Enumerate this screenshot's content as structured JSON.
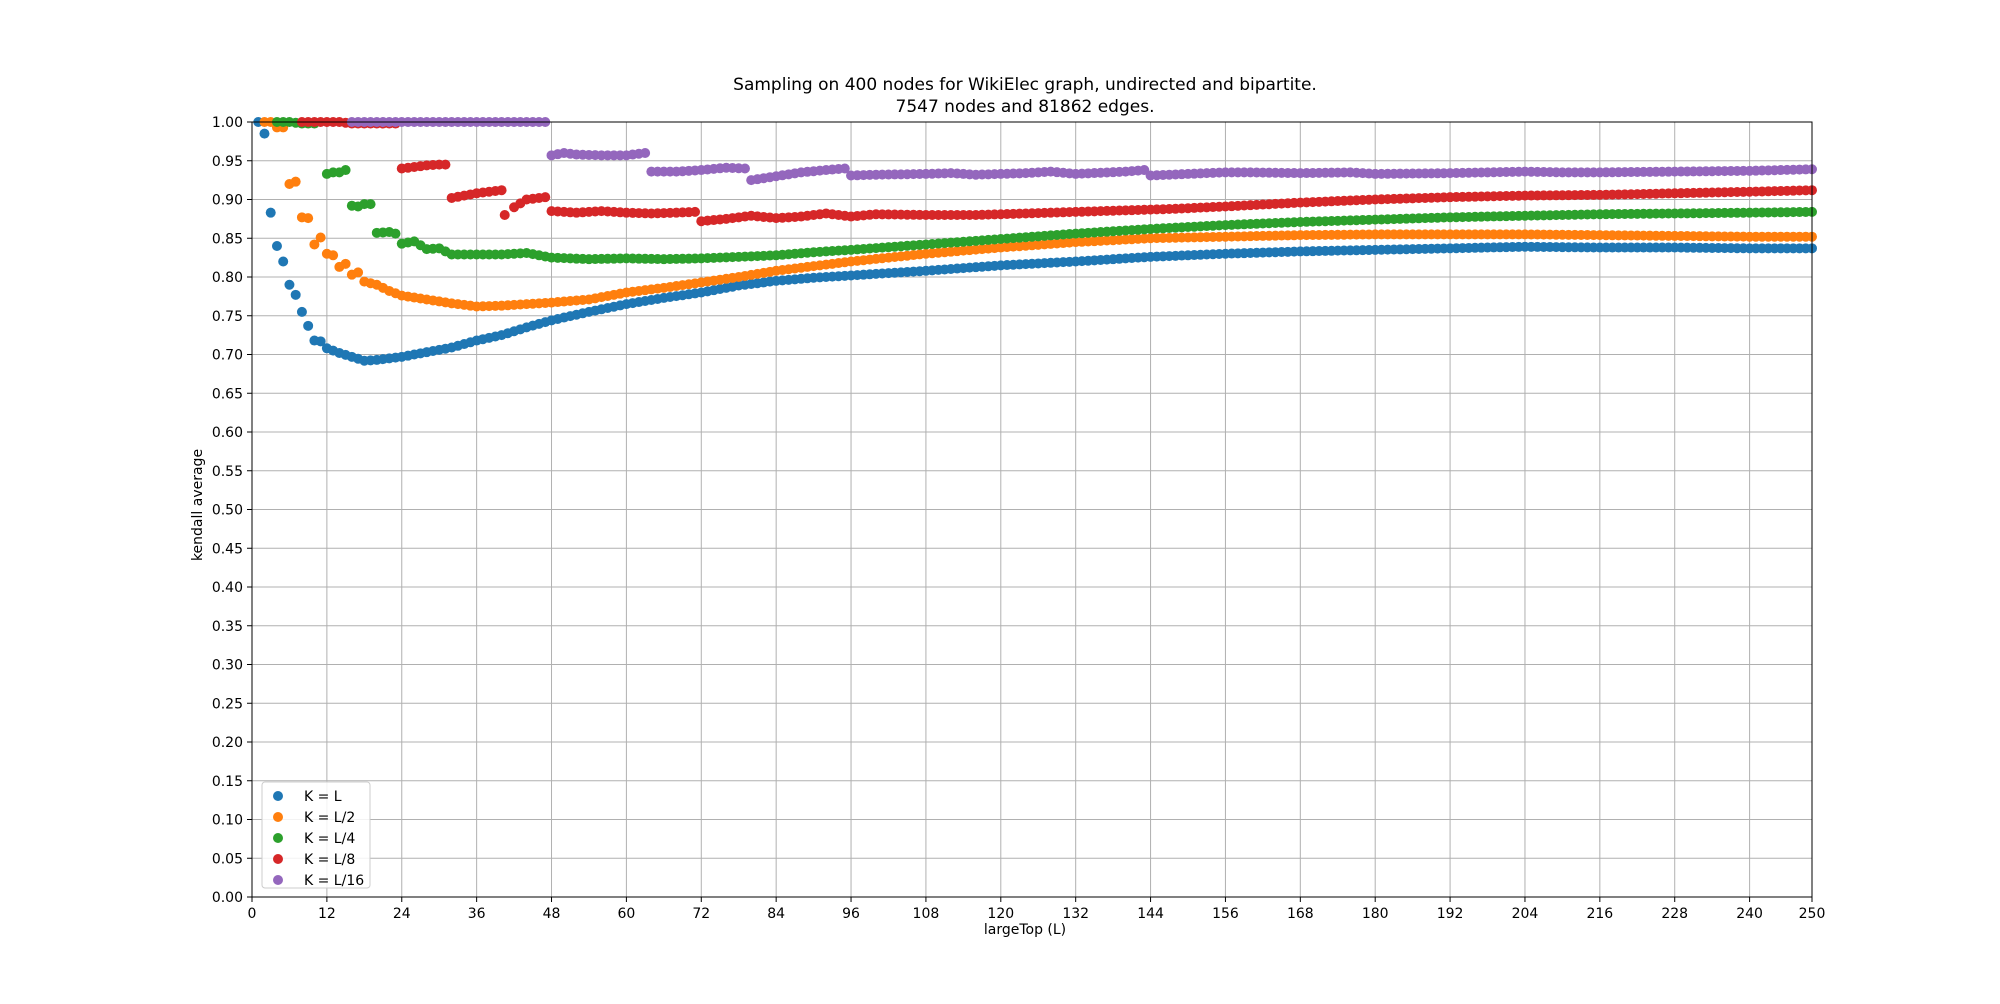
{
  "chart_data": {
    "type": "scatter",
    "title": "Sampling on 400 nodes for WikiElec graph, undirected and bipartite.",
    "subtitle": "7547 nodes and 81862 edges.",
    "xlabel": "largeTop (L)",
    "ylabel": "kendall average",
    "xlim": [
      0,
      250
    ],
    "ylim": [
      0,
      1.0
    ],
    "x_ticks": [
      "0",
      "12",
      "24",
      "36",
      "48",
      "60",
      "72",
      "84",
      "96",
      "108",
      "120",
      "132",
      "144",
      "156",
      "168",
      "180",
      "192",
      "204",
      "216",
      "228",
      "240",
      "250"
    ],
    "y_ticks": [
      "0.00",
      "0.05",
      "0.10",
      "0.15",
      "0.20",
      "0.25",
      "0.30",
      "0.35",
      "0.40",
      "0.45",
      "0.50",
      "0.55",
      "0.60",
      "0.65",
      "0.70",
      "0.75",
      "0.80",
      "0.85",
      "0.90",
      "0.95",
      "1.00"
    ],
    "grid": true,
    "legend_position": "bottom-left",
    "series": [
      {
        "name": "K = L",
        "color": "#1f77b4",
        "points": [
          [
            1,
            1.0
          ],
          [
            2,
            0.985
          ],
          [
            3,
            0.883
          ],
          [
            4,
            0.84
          ],
          [
            5,
            0.82
          ],
          [
            6,
            0.79
          ],
          [
            7,
            0.777
          ],
          [
            8,
            0.755
          ],
          [
            9,
            0.737
          ],
          [
            10,
            0.718
          ],
          [
            11,
            0.717
          ],
          [
            12,
            0.708
          ],
          [
            14,
            0.702
          ],
          [
            16,
            0.697
          ],
          [
            18,
            0.692
          ],
          [
            20,
            0.693
          ],
          [
            24,
            0.697
          ],
          [
            28,
            0.703
          ],
          [
            32,
            0.709
          ],
          [
            36,
            0.718
          ],
          [
            40,
            0.725
          ],
          [
            44,
            0.735
          ],
          [
            48,
            0.744
          ],
          [
            54,
            0.755
          ],
          [
            60,
            0.765
          ],
          [
            66,
            0.773
          ],
          [
            72,
            0.78
          ],
          [
            78,
            0.789
          ],
          [
            84,
            0.795
          ],
          [
            90,
            0.799
          ],
          [
            96,
            0.802
          ],
          [
            108,
            0.808
          ],
          [
            120,
            0.815
          ],
          [
            132,
            0.82
          ],
          [
            144,
            0.826
          ],
          [
            156,
            0.83
          ],
          [
            168,
            0.833
          ],
          [
            180,
            0.835
          ],
          [
            192,
            0.837
          ],
          [
            204,
            0.839
          ],
          [
            216,
            0.838
          ],
          [
            228,
            0.838
          ],
          [
            240,
            0.837
          ],
          [
            250,
            0.837
          ]
        ]
      },
      {
        "name": "K = L/2",
        "color": "#ff7f0e",
        "points": [
          [
            2,
            1.0
          ],
          [
            3,
            1.0
          ],
          [
            4,
            0.993
          ],
          [
            5,
            0.993
          ],
          [
            6,
            0.92
          ],
          [
            7,
            0.923
          ],
          [
            8,
            0.877
          ],
          [
            9,
            0.876
          ],
          [
            10,
            0.842
          ],
          [
            11,
            0.851
          ],
          [
            12,
            0.83
          ],
          [
            13,
            0.828
          ],
          [
            14,
            0.813
          ],
          [
            15,
            0.817
          ],
          [
            16,
            0.803
          ],
          [
            17,
            0.806
          ],
          [
            18,
            0.794
          ],
          [
            20,
            0.79
          ],
          [
            22,
            0.782
          ],
          [
            24,
            0.776
          ],
          [
            28,
            0.771
          ],
          [
            32,
            0.766
          ],
          [
            36,
            0.762
          ],
          [
            40,
            0.763
          ],
          [
            44,
            0.765
          ],
          [
            48,
            0.767
          ],
          [
            54,
            0.771
          ],
          [
            60,
            0.78
          ],
          [
            66,
            0.786
          ],
          [
            72,
            0.793
          ],
          [
            78,
            0.8
          ],
          [
            84,
            0.808
          ],
          [
            90,
            0.814
          ],
          [
            96,
            0.82
          ],
          [
            108,
            0.83
          ],
          [
            120,
            0.838
          ],
          [
            132,
            0.845
          ],
          [
            144,
            0.85
          ],
          [
            156,
            0.852
          ],
          [
            168,
            0.854
          ],
          [
            180,
            0.855
          ],
          [
            192,
            0.855
          ],
          [
            204,
            0.855
          ],
          [
            216,
            0.854
          ],
          [
            228,
            0.853
          ],
          [
            240,
            0.852
          ],
          [
            250,
            0.852
          ]
        ]
      },
      {
        "name": "K = L/4",
        "color": "#2ca02c",
        "points": [
          [
            4,
            1.0
          ],
          [
            6,
            1.0
          ],
          [
            8,
            0.998
          ],
          [
            10,
            0.998
          ],
          [
            12,
            0.933
          ],
          [
            13,
            0.935
          ],
          [
            14,
            0.935
          ],
          [
            15,
            0.938
          ],
          [
            16,
            0.892
          ],
          [
            17,
            0.891
          ],
          [
            18,
            0.894
          ],
          [
            19,
            0.894
          ],
          [
            20,
            0.857
          ],
          [
            22,
            0.858
          ],
          [
            23,
            0.856
          ],
          [
            24,
            0.843
          ],
          [
            26,
            0.846
          ],
          [
            28,
            0.836
          ],
          [
            30,
            0.837
          ],
          [
            32,
            0.829
          ],
          [
            36,
            0.829
          ],
          [
            40,
            0.829
          ],
          [
            44,
            0.831
          ],
          [
            48,
            0.825
          ],
          [
            54,
            0.823
          ],
          [
            60,
            0.824
          ],
          [
            66,
            0.823
          ],
          [
            72,
            0.824
          ],
          [
            78,
            0.826
          ],
          [
            84,
            0.828
          ],
          [
            90,
            0.832
          ],
          [
            96,
            0.835
          ],
          [
            108,
            0.842
          ],
          [
            120,
            0.849
          ],
          [
            132,
            0.856
          ],
          [
            144,
            0.862
          ],
          [
            156,
            0.867
          ],
          [
            168,
            0.871
          ],
          [
            180,
            0.874
          ],
          [
            192,
            0.877
          ],
          [
            204,
            0.879
          ],
          [
            216,
            0.881
          ],
          [
            228,
            0.882
          ],
          [
            240,
            0.883
          ],
          [
            250,
            0.884
          ]
        ]
      },
      {
        "name": "K = L/8",
        "color": "#d62728",
        "points": [
          [
            8,
            1.0
          ],
          [
            12,
            1.0
          ],
          [
            14,
            1.0
          ],
          [
            16,
            0.998
          ],
          [
            20,
            0.998
          ],
          [
            23,
            0.998
          ],
          [
            24,
            0.94
          ],
          [
            26,
            0.942
          ],
          [
            28,
            0.944
          ],
          [
            30,
            0.945
          ],
          [
            31,
            0.945
          ],
          [
            32,
            0.902
          ],
          [
            34,
            0.905
          ],
          [
            36,
            0.908
          ],
          [
            38,
            0.91
          ],
          [
            40,
            0.912
          ],
          [
            40.5,
            0.88
          ],
          [
            42,
            0.89
          ],
          [
            44,
            0.9
          ],
          [
            46,
            0.902
          ],
          [
            47,
            0.903
          ],
          [
            48,
            0.885
          ],
          [
            52,
            0.883
          ],
          [
            56,
            0.885
          ],
          [
            60,
            0.883
          ],
          [
            64,
            0.882
          ],
          [
            68,
            0.883
          ],
          [
            71,
            0.884
          ],
          [
            72,
            0.872
          ],
          [
            76,
            0.875
          ],
          [
            80,
            0.879
          ],
          [
            84,
            0.876
          ],
          [
            88,
            0.878
          ],
          [
            92,
            0.882
          ],
          [
            96,
            0.878
          ],
          [
            100,
            0.881
          ],
          [
            108,
            0.88
          ],
          [
            116,
            0.88
          ],
          [
            124,
            0.882
          ],
          [
            132,
            0.884
          ],
          [
            140,
            0.886
          ],
          [
            148,
            0.888
          ],
          [
            156,
            0.891
          ],
          [
            168,
            0.896
          ],
          [
            180,
            0.9
          ],
          [
            192,
            0.903
          ],
          [
            204,
            0.905
          ],
          [
            216,
            0.906
          ],
          [
            228,
            0.908
          ],
          [
            240,
            0.91
          ],
          [
            250,
            0.912
          ]
        ]
      },
      {
        "name": "K = L/16",
        "color": "#9467bd",
        "points": [
          [
            16,
            1.0
          ],
          [
            20,
            1.0
          ],
          [
            24,
            1.0
          ],
          [
            28,
            1.0
          ],
          [
            32,
            1.0
          ],
          [
            36,
            1.0
          ],
          [
            40,
            1.0
          ],
          [
            44,
            1.0
          ],
          [
            47,
            1.0
          ],
          [
            48,
            0.957
          ],
          [
            50,
            0.96
          ],
          [
            52,
            0.958
          ],
          [
            56,
            0.957
          ],
          [
            60,
            0.957
          ],
          [
            62,
            0.959
          ],
          [
            63,
            0.96
          ],
          [
            64,
            0.936
          ],
          [
            68,
            0.936
          ],
          [
            72,
            0.938
          ],
          [
            76,
            0.941
          ],
          [
            79,
            0.94
          ],
          [
            80,
            0.925
          ],
          [
            84,
            0.93
          ],
          [
            88,
            0.935
          ],
          [
            92,
            0.938
          ],
          [
            95,
            0.94
          ],
          [
            96,
            0.931
          ],
          [
            100,
            0.932
          ],
          [
            108,
            0.933
          ],
          [
            112,
            0.934
          ],
          [
            116,
            0.932
          ],
          [
            124,
            0.934
          ],
          [
            128,
            0.936
          ],
          [
            132,
            0.933
          ],
          [
            140,
            0.936
          ],
          [
            143,
            0.938
          ],
          [
            144,
            0.931
          ],
          [
            150,
            0.933
          ],
          [
            156,
            0.935
          ],
          [
            160,
            0.935
          ],
          [
            168,
            0.934
          ],
          [
            176,
            0.935
          ],
          [
            180,
            0.933
          ],
          [
            192,
            0.934
          ],
          [
            204,
            0.936
          ],
          [
            210,
            0.935
          ],
          [
            216,
            0.935
          ],
          [
            228,
            0.936
          ],
          [
            240,
            0.937
          ],
          [
            250,
            0.939
          ]
        ]
      }
    ]
  }
}
